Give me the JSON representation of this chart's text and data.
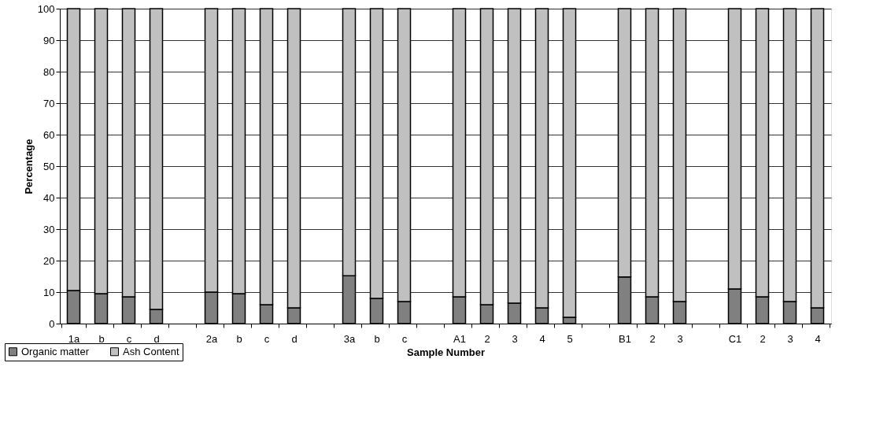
{
  "chart_data": {
    "type": "bar",
    "stacked": true,
    "xlabel": "Sample Number",
    "ylabel": "Percentage",
    "categories": [
      "1a",
      "b",
      "c",
      "d",
      null,
      "2a",
      "b",
      "c",
      "d",
      null,
      "3a",
      "b",
      "c",
      null,
      "A1",
      "2",
      "3",
      "4",
      "5",
      null,
      "B1",
      "2",
      "3",
      null,
      "C1",
      "2",
      "3",
      "4"
    ],
    "series": [
      {
        "name": "Organic matter",
        "color": "#808080",
        "values": [
          10.5,
          9.5,
          8.5,
          4.5,
          null,
          10,
          9.5,
          6,
          5,
          null,
          15.2,
          8,
          7,
          null,
          8.5,
          6,
          6.5,
          5,
          2,
          null,
          14.8,
          8.5,
          7,
          null,
          11,
          8.5,
          7,
          5
        ]
      },
      {
        "name": "Ash Content",
        "color": "#c0c0c0",
        "values": [
          89.5,
          90.5,
          91.5,
          95.5,
          null,
          90,
          90.5,
          94,
          95,
          null,
          84.8,
          92,
          93,
          null,
          91.5,
          94,
          93.5,
          95,
          98,
          null,
          85.2,
          91.5,
          93,
          null,
          89,
          91.5,
          93,
          95
        ]
      }
    ],
    "ylim": [
      0,
      100
    ],
    "yticks": [
      0,
      10,
      20,
      30,
      40,
      50,
      60,
      70,
      80,
      90,
      100
    ],
    "grid": "y",
    "legend": "bottom left"
  }
}
